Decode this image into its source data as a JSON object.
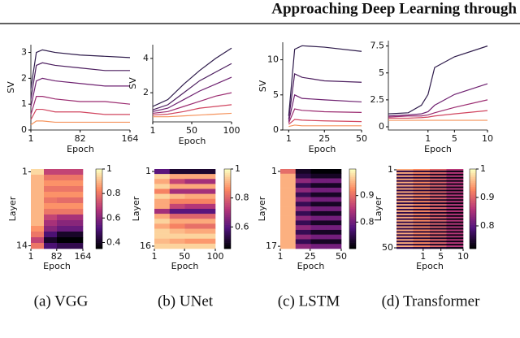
{
  "header": {
    "title": "Approaching Deep Learning through"
  },
  "captions": [
    "(a) VGG",
    "(b) UNet",
    "(c) LSTM",
    "(d) Transformer"
  ],
  "chart_data": [
    {
      "type": "line",
      "xlabel": "Epoch",
      "ylabel": "SV",
      "x": [
        1,
        10,
        20,
        41,
        82,
        123,
        164
      ],
      "xlim": [
        1,
        164
      ],
      "xticks": [
        1,
        82,
        164
      ],
      "ylim": [
        0,
        3.3
      ],
      "yticks": [
        0,
        1,
        2,
        3
      ],
      "series": [
        {
          "color": "#2d1a4a",
          "values": [
            1.6,
            3.0,
            3.1,
            3.0,
            2.9,
            2.85,
            2.8
          ]
        },
        {
          "color": "#4b1d5e",
          "values": [
            1.2,
            2.5,
            2.6,
            2.5,
            2.4,
            2.3,
            2.3
          ]
        },
        {
          "color": "#6e2170",
          "values": [
            0.9,
            1.9,
            2.0,
            1.9,
            1.8,
            1.7,
            1.7
          ]
        },
        {
          "color": "#9b2b70",
          "values": [
            0.6,
            1.3,
            1.3,
            1.2,
            1.1,
            1.1,
            1.0
          ]
        },
        {
          "color": "#d1455f",
          "values": [
            0.4,
            0.8,
            0.8,
            0.7,
            0.7,
            0.6,
            0.6
          ]
        },
        {
          "color": "#f5935c",
          "values": [
            0.2,
            0.35,
            0.35,
            0.3,
            0.3,
            0.3,
            0.3
          ]
        }
      ]
    },
    {
      "type": "line",
      "xlabel": "Epoch",
      "ylabel": "SV",
      "x": [
        1,
        20,
        40,
        60,
        80,
        100
      ],
      "xlim": [
        1,
        100
      ],
      "xticks": [
        1,
        50,
        100
      ],
      "ylim": [
        0.3,
        4.8
      ],
      "yticks": [
        2,
        4
      ],
      "series": [
        {
          "color": "#2d1a4a",
          "values": [
            1.2,
            1.6,
            2.5,
            3.3,
            4.0,
            4.6
          ]
        },
        {
          "color": "#4b1d5e",
          "values": [
            1.0,
            1.3,
            2.0,
            2.7,
            3.2,
            3.7
          ]
        },
        {
          "color": "#6e2170",
          "values": [
            0.9,
            1.1,
            1.6,
            2.1,
            2.5,
            2.9
          ]
        },
        {
          "color": "#9b2b70",
          "values": [
            0.8,
            0.9,
            1.2,
            1.5,
            1.8,
            2.0
          ]
        },
        {
          "color": "#d1455f",
          "values": [
            0.7,
            0.75,
            0.9,
            1.1,
            1.2,
            1.3
          ]
        },
        {
          "color": "#f5935c",
          "values": [
            0.6,
            0.6,
            0.65,
            0.7,
            0.75,
            0.8
          ]
        }
      ]
    },
    {
      "type": "line",
      "xlabel": "Epoch",
      "ylabel": "SV",
      "x": [
        1,
        5,
        10,
        25,
        50
      ],
      "xlim": [
        -3,
        50
      ],
      "xticks": [
        1,
        25,
        50
      ],
      "ylim": [
        0,
        12.5
      ],
      "yticks": [
        0,
        5,
        10
      ],
      "series": [
        {
          "color": "#2d1a4a",
          "values": [
            2,
            11.5,
            12,
            11.8,
            11.2
          ]
        },
        {
          "color": "#4b1d5e",
          "values": [
            1.5,
            8,
            7.5,
            7,
            6.8
          ]
        },
        {
          "color": "#6e2170",
          "values": [
            1.2,
            5,
            4.5,
            4.3,
            4
          ]
        },
        {
          "color": "#9b2b70",
          "values": [
            1,
            3,
            2.8,
            2.6,
            2.5
          ]
        },
        {
          "color": "#d1455f",
          "values": [
            0.8,
            1.5,
            1.4,
            1.3,
            1.2
          ]
        },
        {
          "color": "#f5935c",
          "values": [
            0.5,
            0.7,
            0.6,
            0.6,
            0.6
          ]
        }
      ]
    },
    {
      "type": "line",
      "xlabel": "Epoch",
      "ylabel": null,
      "x": [
        -5,
        -2,
        0,
        1,
        2,
        5,
        10
      ],
      "xlim": [
        -5,
        10
      ],
      "xticks": [
        1,
        5,
        10
      ],
      "ylim": [
        -0.3,
        8
      ],
      "yticks": [
        0.0,
        2.5,
        5.0,
        7.5
      ],
      "series": [
        {
          "color": "#2d1a4a",
          "values": [
            1.2,
            1.3,
            2,
            3,
            5.5,
            6.5,
            7.5
          ]
        },
        {
          "color": "#6e2170",
          "values": [
            1,
            1.1,
            1.2,
            1.4,
            2,
            3,
            4
          ]
        },
        {
          "color": "#9b2b70",
          "values": [
            0.9,
            1,
            1,
            1.1,
            1.3,
            1.8,
            2.5
          ]
        },
        {
          "color": "#d1455f",
          "values": [
            0.8,
            0.8,
            0.85,
            0.9,
            1,
            1.2,
            1.5
          ]
        },
        {
          "color": "#f5935c",
          "values": [
            0.6,
            0.6,
            0.6,
            0.6,
            0.6,
            0.6,
            0.6
          ]
        }
      ]
    },
    {
      "type": "heatmap",
      "xlabel": "Epoch",
      "ylabel": "Layer",
      "xlim": [
        1,
        164
      ],
      "xticks": [
        1,
        82,
        164
      ],
      "yticks": [
        1,
        14
      ],
      "clim": [
        0.35,
        1.0
      ],
      "cticks": [
        0.4,
        0.6,
        0.8,
        1.0
      ],
      "values": [
        [
          0.95,
          0.7,
          0.7,
          0.7
        ],
        [
          0.9,
          0.8,
          0.8,
          0.8
        ],
        [
          0.9,
          0.85,
          0.85,
          0.85
        ],
        [
          0.9,
          0.8,
          0.8,
          0.8
        ],
        [
          0.9,
          0.85,
          0.85,
          0.85
        ],
        [
          0.9,
          0.8,
          0.78,
          0.78
        ],
        [
          0.9,
          0.85,
          0.85,
          0.85
        ],
        [
          0.9,
          0.8,
          0.8,
          0.8
        ],
        [
          0.9,
          0.7,
          0.65,
          0.65
        ],
        [
          0.9,
          0.65,
          0.6,
          0.6
        ],
        [
          0.85,
          0.6,
          0.55,
          0.55
        ],
        [
          0.8,
          0.5,
          0.4,
          0.4
        ],
        [
          0.7,
          0.4,
          0.35,
          0.35
        ],
        [
          0.8,
          0.5,
          0.45,
          0.45
        ]
      ]
    },
    {
      "type": "heatmap",
      "xlabel": "Epoch",
      "ylabel": "Layer",
      "xlim": [
        1,
        100
      ],
      "xticks": [
        1,
        50,
        100
      ],
      "yticks": [
        1,
        16
      ],
      "clim": [
        0.45,
        1.0
      ],
      "cticks": [
        0.6,
        0.8,
        1.0
      ],
      "values": [
        [
          0.6,
          0.5,
          0.5,
          0.5
        ],
        [
          0.95,
          0.9,
          0.9,
          0.9
        ],
        [
          0.9,
          0.75,
          0.7,
          0.7
        ],
        [
          0.95,
          0.9,
          0.9,
          0.9
        ],
        [
          0.85,
          0.7,
          0.7,
          0.7
        ],
        [
          0.95,
          0.92,
          0.9,
          0.9
        ],
        [
          0.9,
          0.85,
          0.85,
          0.85
        ],
        [
          0.9,
          0.75,
          0.72,
          0.72
        ],
        [
          0.7,
          0.6,
          0.6,
          0.6
        ],
        [
          0.9,
          0.8,
          0.8,
          0.8
        ],
        [
          0.95,
          0.9,
          0.9,
          0.9
        ],
        [
          0.9,
          0.85,
          0.82,
          0.82
        ],
        [
          0.95,
          0.92,
          0.9,
          0.9
        ],
        [
          0.95,
          0.95,
          0.95,
          0.95
        ],
        [
          0.92,
          0.9,
          0.88,
          0.88
        ],
        [
          0.95,
          0.95,
          0.95,
          0.95
        ]
      ]
    },
    {
      "type": "heatmap",
      "xlabel": "Epoch",
      "ylabel": "Layer",
      "xlim": [
        1,
        50
      ],
      "xticks": [
        1,
        25,
        50
      ],
      "yticks": [
        1,
        17
      ],
      "clim": [
        0.7,
        1.0
      ],
      "cticks": [
        0.8,
        0.9
      ],
      "values": [
        [
          0.9,
          0.72,
          0.7,
          0.7
        ],
        [
          0.95,
          0.74,
          0.72,
          0.72
        ],
        [
          0.95,
          0.82,
          0.8,
          0.8
        ],
        [
          0.95,
          0.75,
          0.72,
          0.72
        ],
        [
          0.95,
          0.82,
          0.8,
          0.8
        ],
        [
          0.95,
          0.75,
          0.72,
          0.72
        ],
        [
          0.95,
          0.82,
          0.8,
          0.8
        ],
        [
          0.95,
          0.75,
          0.72,
          0.72
        ],
        [
          0.95,
          0.82,
          0.8,
          0.8
        ],
        [
          0.95,
          0.75,
          0.72,
          0.72
        ],
        [
          0.95,
          0.82,
          0.8,
          0.8
        ],
        [
          0.95,
          0.75,
          0.72,
          0.72
        ],
        [
          0.95,
          0.82,
          0.8,
          0.8
        ],
        [
          0.95,
          0.75,
          0.72,
          0.72
        ],
        [
          0.95,
          0.82,
          0.8,
          0.8
        ],
        [
          0.95,
          0.75,
          0.72,
          0.72
        ],
        [
          0.95,
          0.82,
          0.8,
          0.8
        ]
      ]
    },
    {
      "type": "heatmap",
      "xlabel": "Epoch",
      "ylabel": "Layer",
      "xlim": [
        -5,
        10
      ],
      "xticks": [
        1,
        5,
        10
      ],
      "yticks": [
        1,
        50
      ],
      "clim": [
        0.72,
        1.0
      ],
      "cticks": [
        0.8,
        0.9,
        1.0
      ],
      "values": [
        [
          0.95,
          0.93,
          0.9,
          0.86
        ],
        [
          0.76,
          0.75,
          0.74,
          0.73
        ],
        [
          0.95,
          0.93,
          0.9,
          0.86
        ],
        [
          0.76,
          0.75,
          0.74,
          0.73
        ],
        [
          0.95,
          0.93,
          0.9,
          0.86
        ],
        [
          0.76,
          0.75,
          0.74,
          0.73
        ],
        [
          0.95,
          0.93,
          0.9,
          0.86
        ],
        [
          0.76,
          0.75,
          0.74,
          0.73
        ],
        [
          0.95,
          0.93,
          0.9,
          0.86
        ],
        [
          0.76,
          0.75,
          0.74,
          0.73
        ],
        [
          0.95,
          0.93,
          0.9,
          0.86
        ],
        [
          0.76,
          0.75,
          0.74,
          0.73
        ],
        [
          0.95,
          0.93,
          0.9,
          0.86
        ],
        [
          0.76,
          0.75,
          0.74,
          0.73
        ],
        [
          0.95,
          0.93,
          0.9,
          0.86
        ],
        [
          0.76,
          0.75,
          0.74,
          0.73
        ],
        [
          0.95,
          0.93,
          0.9,
          0.86
        ],
        [
          0.76,
          0.75,
          0.74,
          0.73
        ],
        [
          0.95,
          0.93,
          0.9,
          0.86
        ],
        [
          0.76,
          0.75,
          0.74,
          0.73
        ],
        [
          0.95,
          0.93,
          0.9,
          0.86
        ],
        [
          0.76,
          0.75,
          0.74,
          0.73
        ],
        [
          0.95,
          0.93,
          0.9,
          0.86
        ],
        [
          0.76,
          0.75,
          0.74,
          0.73
        ],
        [
          0.95,
          0.93,
          0.9,
          0.86
        ],
        [
          0.76,
          0.75,
          0.74,
          0.73
        ],
        [
          0.95,
          0.93,
          0.9,
          0.86
        ],
        [
          0.76,
          0.75,
          0.74,
          0.73
        ],
        [
          0.95,
          0.93,
          0.9,
          0.86
        ],
        [
          0.76,
          0.75,
          0.74,
          0.73
        ],
        [
          0.95,
          0.93,
          0.9,
          0.86
        ],
        [
          0.76,
          0.75,
          0.74,
          0.73
        ],
        [
          0.95,
          0.93,
          0.9,
          0.86
        ],
        [
          0.76,
          0.75,
          0.74,
          0.73
        ],
        [
          0.95,
          0.93,
          0.9,
          0.86
        ],
        [
          0.76,
          0.75,
          0.74,
          0.73
        ],
        [
          0.95,
          0.93,
          0.9,
          0.86
        ],
        [
          0.76,
          0.75,
          0.74,
          0.73
        ],
        [
          0.95,
          0.93,
          0.9,
          0.86
        ],
        [
          0.76,
          0.75,
          0.74,
          0.73
        ],
        [
          0.95,
          0.93,
          0.9,
          0.86
        ],
        [
          0.76,
          0.75,
          0.74,
          0.73
        ],
        [
          0.95,
          0.93,
          0.9,
          0.86
        ],
        [
          0.76,
          0.75,
          0.74,
          0.73
        ],
        [
          0.95,
          0.93,
          0.9,
          0.86
        ],
        [
          0.76,
          0.75,
          0.74,
          0.73
        ],
        [
          0.95,
          0.93,
          0.9,
          0.86
        ],
        [
          0.76,
          0.75,
          0.74,
          0.73
        ],
        [
          0.95,
          0.93,
          0.9,
          0.86
        ],
        [
          0.76,
          0.75,
          0.74,
          0.73
        ]
      ]
    }
  ]
}
